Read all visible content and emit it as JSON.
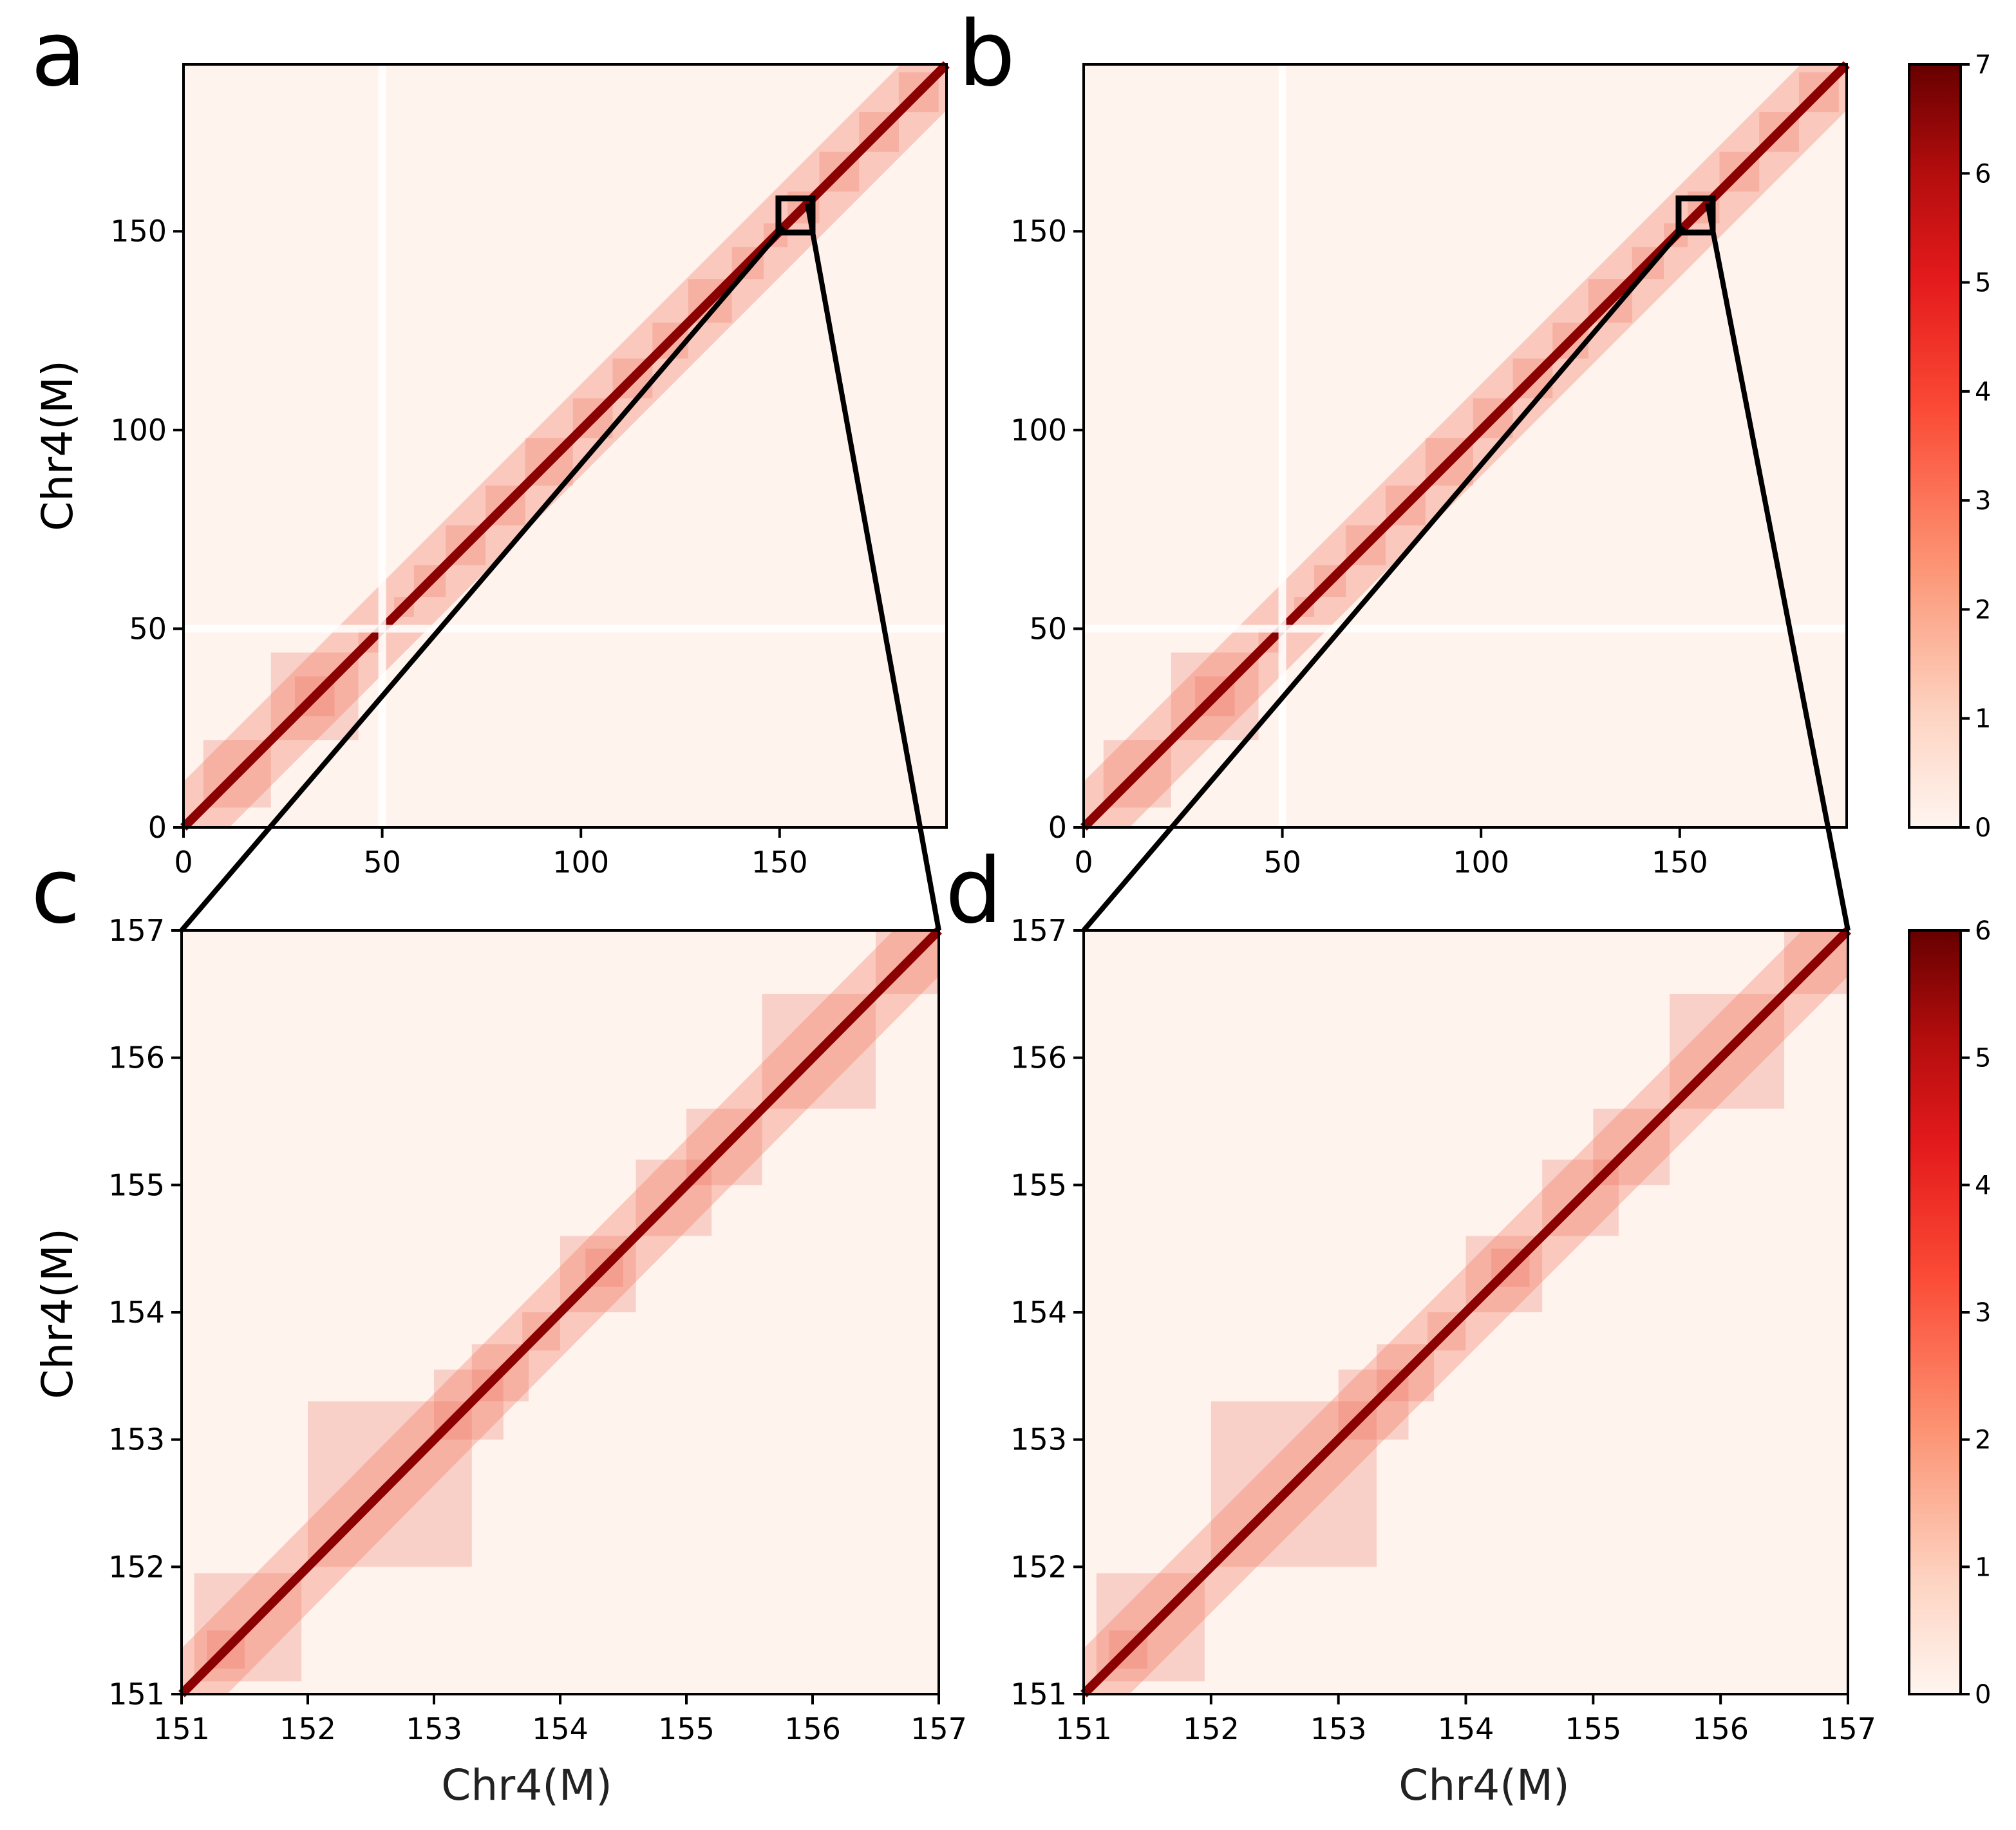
{
  "figure": {
    "panel_labels": [
      "a",
      "b",
      "c",
      "d"
    ]
  },
  "chart_data": [
    {
      "id": "a",
      "type": "heatmap",
      "title": "",
      "xlabel": "",
      "ylabel": "Chr4(M)",
      "xlim": [
        0,
        192
      ],
      "ylim": [
        0,
        192
      ],
      "xticks": [
        0,
        50,
        100,
        150
      ],
      "yticks": [
        0,
        50,
        100,
        150
      ],
      "tick_labels_x": [
        "0",
        "50",
        "100",
        "150"
      ],
      "tick_labels_y": [
        "0",
        "50",
        "100",
        "150"
      ],
      "highlight_box": {
        "x": [
          151,
          157
        ],
        "y": [
          151,
          157
        ]
      },
      "tads": [
        [
          5,
          22
        ],
        [
          22,
          44
        ],
        [
          28,
          38
        ],
        [
          44,
          50
        ],
        [
          53,
          58
        ],
        [
          58,
          66
        ],
        [
          66,
          76
        ],
        [
          76,
          86
        ],
        [
          86,
          98
        ],
        [
          98,
          108
        ],
        [
          108,
          118
        ],
        [
          118,
          127
        ],
        [
          127,
          138
        ],
        [
          138,
          146
        ],
        [
          146,
          152
        ],
        [
          152,
          160
        ],
        [
          160,
          170
        ],
        [
          170,
          180
        ],
        [
          180,
          190
        ]
      ],
      "gaps": [
        50
      ],
      "colorscale_max": 7
    },
    {
      "id": "b",
      "type": "heatmap",
      "title": "",
      "xlabel": "",
      "ylabel": "",
      "xlim": [
        0,
        192
      ],
      "ylim": [
        0,
        192
      ],
      "xticks": [
        0,
        50,
        100,
        150
      ],
      "yticks": [
        0,
        50,
        100,
        150
      ],
      "tick_labels_x": [
        "0",
        "50",
        "100",
        "150"
      ],
      "tick_labels_y": [
        "0",
        "50",
        "100",
        "150"
      ],
      "highlight_box": {
        "x": [
          151,
          157
        ],
        "y": [
          151,
          157
        ]
      },
      "tads": [
        [
          5,
          22
        ],
        [
          22,
          44
        ],
        [
          28,
          38
        ],
        [
          44,
          50
        ],
        [
          53,
          58
        ],
        [
          58,
          66
        ],
        [
          66,
          76
        ],
        [
          76,
          86
        ],
        [
          86,
          98
        ],
        [
          98,
          108
        ],
        [
          108,
          118
        ],
        [
          118,
          127
        ],
        [
          127,
          138
        ],
        [
          138,
          146
        ],
        [
          146,
          152
        ],
        [
          152,
          160
        ],
        [
          160,
          170
        ],
        [
          170,
          180
        ],
        [
          180,
          190
        ]
      ],
      "gaps": [
        50
      ],
      "colorscale_max": 7
    },
    {
      "id": "c",
      "type": "heatmap",
      "title": "",
      "xlabel": "Chr4(M)",
      "ylabel": "Chr4(M)",
      "xlim": [
        151,
        157
      ],
      "ylim": [
        151,
        157
      ],
      "xticks": [
        151,
        152,
        153,
        154,
        155,
        156,
        157
      ],
      "yticks": [
        151,
        152,
        153,
        154,
        155,
        156,
        157
      ],
      "tick_labels_x": [
        "151",
        "152",
        "153",
        "154",
        "155",
        "156",
        "157"
      ],
      "tick_labels_y": [
        "151",
        "152",
        "153",
        "154",
        "155",
        "156",
        "157"
      ],
      "tads": [
        [
          151.1,
          151.95
        ],
        [
          151.2,
          151.5
        ],
        [
          152.0,
          153.3
        ],
        [
          153.0,
          153.55
        ],
        [
          153.3,
          153.75
        ],
        [
          153.7,
          154.0
        ],
        [
          154.0,
          154.6
        ],
        [
          154.2,
          154.5
        ],
        [
          154.6,
          155.2
        ],
        [
          155.0,
          155.6
        ],
        [
          155.6,
          156.5
        ],
        [
          156.5,
          157.0
        ]
      ],
      "gaps": [],
      "colorscale_max": 6
    },
    {
      "id": "d",
      "type": "heatmap",
      "title": "",
      "xlabel": "Chr4(M)",
      "ylabel": "",
      "xlim": [
        151,
        157
      ],
      "ylim": [
        151,
        157
      ],
      "xticks": [
        151,
        152,
        153,
        154,
        155,
        156,
        157
      ],
      "yticks": [
        151,
        152,
        153,
        154,
        155,
        156,
        157
      ],
      "tick_labels_x": [
        "151",
        "152",
        "153",
        "154",
        "155",
        "156",
        "157"
      ],
      "tick_labels_y": [
        "151",
        "152",
        "153",
        "154",
        "155",
        "156",
        "157"
      ],
      "tads": [
        [
          151.1,
          151.95
        ],
        [
          151.2,
          151.5
        ],
        [
          152.0,
          153.3
        ],
        [
          153.0,
          153.55
        ],
        [
          153.3,
          153.75
        ],
        [
          153.7,
          154.0
        ],
        [
          154.0,
          154.6
        ],
        [
          154.2,
          154.5
        ],
        [
          154.6,
          155.2
        ],
        [
          155.0,
          155.6
        ],
        [
          155.6,
          156.5
        ],
        [
          156.5,
          157.0
        ]
      ],
      "gaps": [],
      "colorscale_max": 6
    }
  ],
  "colorbars": [
    {
      "id": "top",
      "max": 7,
      "ticks": [
        0,
        1,
        2,
        3,
        4,
        5,
        6,
        7
      ],
      "tick_labels": [
        "0",
        "1",
        "2",
        "3",
        "4",
        "5",
        "6",
        "7"
      ]
    },
    {
      "id": "bottom",
      "max": 6,
      "ticks": [
        0,
        1,
        2,
        3,
        4,
        5,
        6
      ],
      "tick_labels": [
        "0",
        "1",
        "2",
        "3",
        "4",
        "5",
        "6"
      ]
    }
  ],
  "colors": {
    "low": "#fff1ec",
    "mid": "#ff3b25",
    "high": "#6b0000",
    "axis": "#000000"
  }
}
